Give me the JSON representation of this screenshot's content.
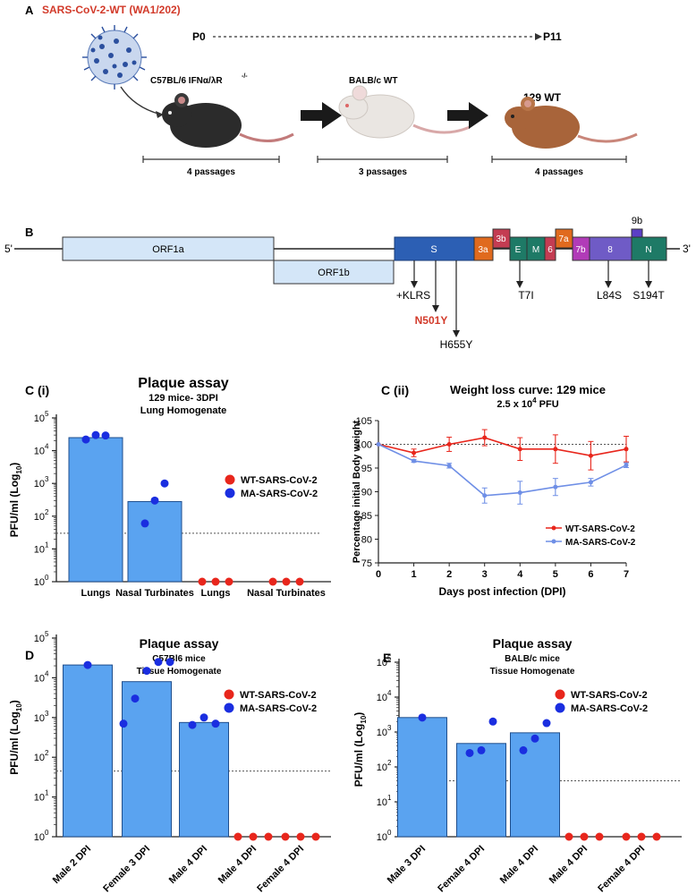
{
  "colors": {
    "bar": "#5aa3f0",
    "bar_stroke": "#1f4e8c",
    "wt": "#e8261c",
    "ma": "#1a2ee0",
    "ma_line": "#6f8fe6",
    "virus_title": "#d23a2a",
    "n501y": "#d23a2a"
  },
  "panel_a": {
    "letter": "A",
    "virus_label": "SARS-CoV-2-WT (WA1/202)",
    "p0": "P0",
    "p11": "P11",
    "mouse1_label": "C57BL/6  IFNα/λR",
    "mouse1_sup": "-/-",
    "mouse2_label": "BALB/c WT",
    "mouse3_label": "129 WT",
    "passages": [
      "4 passages",
      "3 passages",
      "4 passages"
    ]
  },
  "panel_b": {
    "letter": "B",
    "five_prime": "5'",
    "three_prime": "3'",
    "genes": [
      "ORF1a",
      "ORF1b",
      "S",
      "3a",
      "3b",
      "E",
      "M",
      "6",
      "7a",
      "7b",
      "8",
      "9b",
      "N"
    ],
    "mutations": [
      "+KLRS",
      "N501Y",
      "H655Y",
      "T7I",
      "L84S",
      "S194T"
    ]
  },
  "chart_data": [
    {
      "id": "C(i)",
      "type": "bar",
      "letter": "C (i)",
      "title": "Plaque assay",
      "subtitle1": "129 mice- 3DPI",
      "subtitle2": "Lung Homogenate",
      "ylabel": "PFU/ml (Log",
      "ylabel_sub": "10",
      "yscale": "log",
      "ylim": [
        1,
        100000
      ],
      "yticks": [
        "10",
        "10",
        "10",
        "10",
        "10",
        "10"
      ],
      "ytick_exp": [
        "0",
        "1",
        "2",
        "3",
        "4",
        "5"
      ],
      "categories": [
        "Lungs",
        "Nasal Turbinates",
        "Lungs",
        "Nasal Turbinates"
      ],
      "detection_limit": 30,
      "legend": [
        "WT-SARS-CoV-2",
        "MA-SARS-CoV-2"
      ],
      "bars": [
        {
          "category": "Lungs",
          "series": "MA",
          "value": 25000,
          "points": [
            22000,
            30000,
            29000
          ]
        },
        {
          "category": "Nasal Turbinates",
          "series": "MA",
          "value": 280,
          "points": [
            60,
            300,
            1000
          ]
        },
        {
          "category": "Lungs",
          "series": "WT",
          "value": 1,
          "points": [
            1,
            1,
            1
          ]
        },
        {
          "category": "Nasal Turbinates",
          "series": "WT",
          "value": 1,
          "points": [
            1,
            1,
            1
          ]
        }
      ]
    },
    {
      "id": "C(ii)",
      "type": "line",
      "letter": "C (ii)",
      "title": "Weight loss curve: 129 mice",
      "subtitle": "2.5 x 10",
      "subtitle_sup": "4",
      "subtitle_unit": " PFU",
      "xlabel": "Days post infection (DPI)",
      "ylabel": "Percentage initial Body weight",
      "x": [
        0,
        1,
        2,
        3,
        4,
        5,
        6,
        7
      ],
      "xlim": [
        0,
        7
      ],
      "ylim": [
        75,
        105
      ],
      "yticks": [
        75,
        80,
        85,
        90,
        95,
        100,
        105
      ],
      "reference": 100,
      "series": [
        {
          "name": "WT-SARS-CoV-2",
          "values": [
            100,
            98.2,
            100,
            101.4,
            99,
            99,
            97.6,
            99
          ],
          "errors": [
            0,
            0.8,
            1.5,
            1.7,
            2.4,
            3,
            3,
            2.7
          ]
        },
        {
          "name": "MA-SARS-CoV-2",
          "values": [
            100,
            96.5,
            95.5,
            89.2,
            89.8,
            91,
            92,
            95.6
          ],
          "errors": [
            0,
            0.3,
            0.5,
            1.6,
            2.4,
            1.8,
            0.8,
            0.5
          ]
        }
      ]
    },
    {
      "id": "D",
      "type": "bar",
      "letter": "D",
      "title": "Plaque assay",
      "subtitle1": "C57Bl6 mice",
      "subtitle2": "Tissue Homogenate",
      "ylabel": "PFU/ml (Log",
      "ylabel_sub": "10",
      "yscale": "log",
      "ylim": [
        1,
        100000
      ],
      "yticks": [
        "10",
        "10",
        "10",
        "10",
        "10",
        "10"
      ],
      "ytick_exp": [
        "0",
        "1",
        "2",
        "3",
        "4",
        "5"
      ],
      "categories": [
        "Male 2 DPI",
        "Female 3 DPI",
        "Male 4 DPI",
        "Male 4 DPI",
        "Female 4 DPI"
      ],
      "detection_limit": 45,
      "legend": [
        "WT-SARS-CoV-2",
        "MA-SARS-CoV-2"
      ],
      "bars": [
        {
          "category": "Male 2 DPI",
          "series": "MA",
          "value": 21000,
          "points": [
            21000
          ]
        },
        {
          "category": "Female 3 DPI",
          "series": "MA",
          "value": 8000,
          "points": [
            700,
            3000,
            15000,
            25000,
            25000
          ]
        },
        {
          "category": "Male 4 DPI",
          "series": "MA",
          "value": 750,
          "points": [
            650,
            1000,
            700
          ]
        },
        {
          "category": "Male 4 DPI",
          "series": "WT",
          "value": 1,
          "points": [
            1,
            1,
            1
          ]
        },
        {
          "category": "Female 4 DPI",
          "series": "WT",
          "value": 1,
          "points": [
            1,
            1,
            1
          ]
        }
      ]
    },
    {
      "id": "E",
      "type": "bar",
      "letter": "E",
      "title": "Plaque assay",
      "subtitle1": "BALB/c mice",
      "subtitle2": "Tissue Homogenate",
      "ylabel": "PFU/ml (Log",
      "ylabel_sub": "10",
      "yscale": "log",
      "ylim": [
        1,
        100000
      ],
      "yticks": [
        "10",
        "10",
        "10",
        "10",
        "10",
        "10"
      ],
      "ytick_exp": [
        "0",
        "1",
        "2",
        "3",
        "4",
        "5"
      ],
      "categories": [
        "Male 3 DPI",
        "Female 4 DPI",
        "Male 4 DPI",
        "Male 4 DPI",
        "Female 4 DPI"
      ],
      "detection_limit": 40,
      "legend": [
        "WT-SARS-CoV-2",
        "MA-SARS-CoV-2"
      ],
      "bars": [
        {
          "category": "Male 3 DPI",
          "series": "MA",
          "value": 2600,
          "points": [
            2600
          ]
        },
        {
          "category": "Female 4 DPI",
          "series": "MA",
          "value": 470,
          "points": [
            250,
            300,
            2000
          ]
        },
        {
          "category": "Male 4 DPI",
          "series": "MA",
          "value": 950,
          "points": [
            300,
            650,
            1800
          ]
        },
        {
          "category": "Male 4 DPI",
          "series": "WT",
          "value": 1,
          "points": [
            1,
            1,
            1
          ]
        },
        {
          "category": "Female 4 DPI",
          "series": "WT",
          "value": 1,
          "points": [
            1,
            1,
            1
          ]
        }
      ]
    }
  ]
}
